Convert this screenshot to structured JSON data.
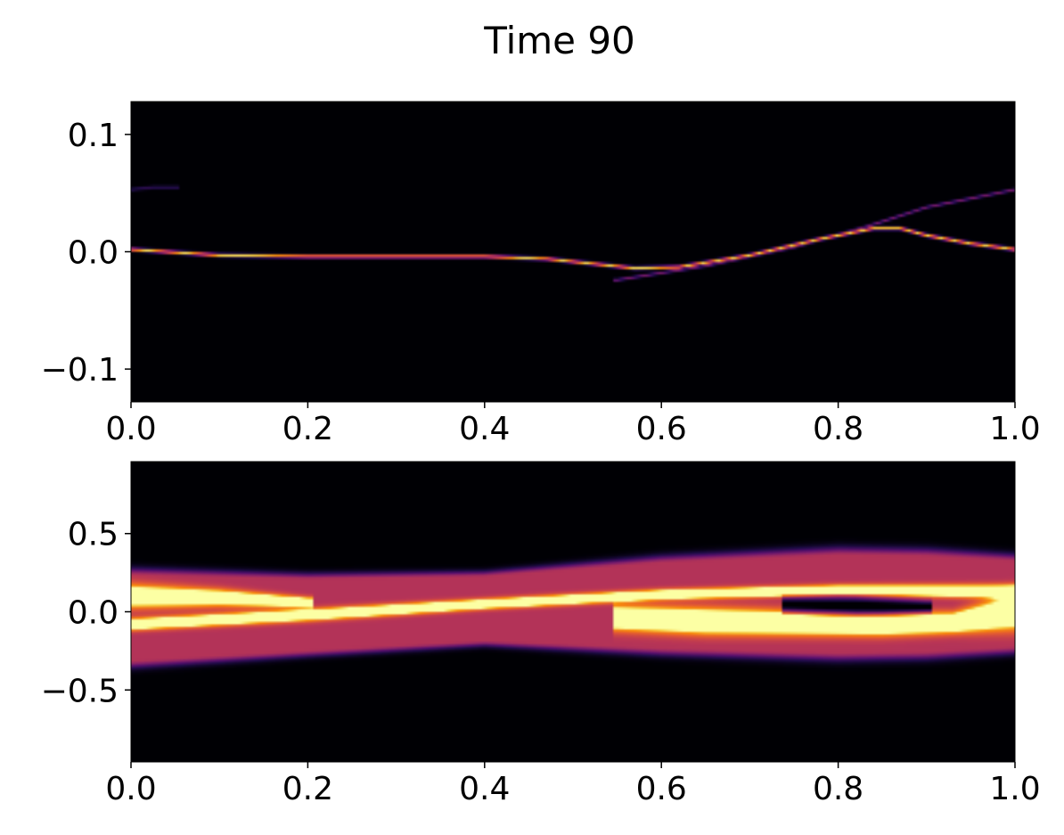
{
  "title": "Time 90",
  "colormap": "inferno",
  "colors": {
    "background": "#000004",
    "mid": "#7a1c6d",
    "orange": "#f0801c",
    "bright": "#fcffa4"
  },
  "chart_data": [
    {
      "type": "heatmap",
      "title": "",
      "xlabel": "",
      "ylabel": "",
      "xlim": [
        0.0,
        1.0
      ],
      "ylim": [
        -0.128,
        0.128
      ],
      "x_ticks": [
        {
          "value": 0.0,
          "label": "0.0"
        },
        {
          "value": 0.2,
          "label": "0.2"
        },
        {
          "value": 0.4,
          "label": "0.4"
        },
        {
          "value": 0.6,
          "label": "0.6"
        },
        {
          "value": 0.8,
          "label": "0.8"
        },
        {
          "value": 1.0,
          "label": "1.0"
        }
      ],
      "y_ticks": [
        {
          "value": 0.1,
          "label": "0.1"
        },
        {
          "value": 0.0,
          "label": "0.0"
        },
        {
          "value": -0.1,
          "label": "−0.1"
        }
      ],
      "features": [
        {
          "name": "main filament",
          "intensity": 0.95,
          "width": 0.0014,
          "points": [
            [
              0.0,
              0.002
            ],
            [
              0.1,
              -0.003
            ],
            [
              0.2,
              -0.004
            ],
            [
              0.3,
              -0.004
            ],
            [
              0.4,
              -0.004
            ],
            [
              0.47,
              -0.006
            ],
            [
              0.52,
              -0.01
            ],
            [
              0.57,
              -0.014
            ],
            [
              0.62,
              -0.013
            ],
            [
              0.7,
              -0.003
            ],
            [
              0.78,
              0.011
            ],
            [
              0.84,
              0.02
            ],
            [
              0.87,
              0.02
            ],
            [
              0.9,
              0.014
            ],
            [
              0.95,
              0.007
            ],
            [
              1.0,
              0.002
            ]
          ]
        },
        {
          "name": "faint upper branch",
          "intensity": 0.38,
          "width": 0.0012,
          "points": [
            [
              0.55,
              -0.024
            ],
            [
              0.65,
              -0.012
            ],
            [
              0.75,
              0.004
            ],
            [
              0.83,
              0.021
            ],
            [
              0.9,
              0.038
            ],
            [
              1.0,
              0.053
            ]
          ]
        },
        {
          "name": "faint edge wisp",
          "intensity": 0.18,
          "width": 0.0014,
          "points": [
            [
              0.0,
              0.053
            ],
            [
              0.025,
              0.055
            ],
            [
              0.05,
              0.055
            ]
          ]
        }
      ]
    },
    {
      "type": "heatmap",
      "title": "",
      "xlabel": "",
      "ylabel": "",
      "xlim": [
        0.0,
        1.0
      ],
      "ylim": [
        -0.96,
        0.96
      ],
      "x_ticks": [
        {
          "value": 0.0,
          "label": "0.0"
        },
        {
          "value": 0.2,
          "label": "0.2"
        },
        {
          "value": 0.4,
          "label": "0.4"
        },
        {
          "value": 0.6,
          "label": "0.6"
        },
        {
          "value": 0.8,
          "label": "0.8"
        },
        {
          "value": 1.0,
          "label": "1.0"
        }
      ],
      "y_ticks": [
        {
          "value": 0.5,
          "label": "0.5"
        },
        {
          "value": 0.0,
          "label": "0.0"
        },
        {
          "value": -0.5,
          "label": "−0.5"
        }
      ],
      "features": [
        {
          "name": "band envelope",
          "intensity": 0.55,
          "points": [
            [
              0.0,
              -0.04,
              0.36
            ],
            [
              0.2,
              -0.02,
              0.3
            ],
            [
              0.4,
              0.02,
              0.27
            ],
            [
              0.6,
              0.04,
              0.36
            ],
            [
              0.8,
              0.05,
              0.41
            ],
            [
              0.9,
              0.05,
              0.4
            ],
            [
              1.0,
              0.05,
              0.36
            ]
          ]
        },
        {
          "name": "bright lower lobe",
          "intensity": 0.98,
          "points": [
            [
              0.55,
              -0.04,
              0.07
            ],
            [
              0.65,
              -0.06,
              0.075
            ],
            [
              0.75,
              -0.07,
              0.07
            ],
            [
              0.85,
              -0.08,
              0.065
            ],
            [
              0.93,
              -0.07,
              0.06
            ],
            [
              1.0,
              0.0,
              0.1
            ]
          ]
        },
        {
          "name": "diagonal streak",
          "intensity": 0.88,
          "points": [
            [
              0.0,
              -0.08,
              0.035
            ],
            [
              0.2,
              -0.02,
              0.035
            ],
            [
              0.4,
              0.05,
              0.03
            ],
            [
              0.6,
              0.11,
              0.03
            ],
            [
              0.8,
              0.14,
              0.03
            ],
            [
              1.0,
              0.13,
              0.04
            ]
          ]
        },
        {
          "name": "upper left lobe",
          "intensity": 0.82,
          "points": [
            [
              0.0,
              0.1,
              0.07
            ],
            [
              0.1,
              0.09,
              0.05
            ],
            [
              0.2,
              0.06,
              0.03
            ]
          ]
        },
        {
          "name": "dark core",
          "intensity": -0.7,
          "points": [
            [
              0.74,
              0.04,
              0.05
            ],
            [
              0.82,
              0.03,
              0.06
            ],
            [
              0.9,
              0.03,
              0.035
            ]
          ]
        }
      ]
    }
  ]
}
